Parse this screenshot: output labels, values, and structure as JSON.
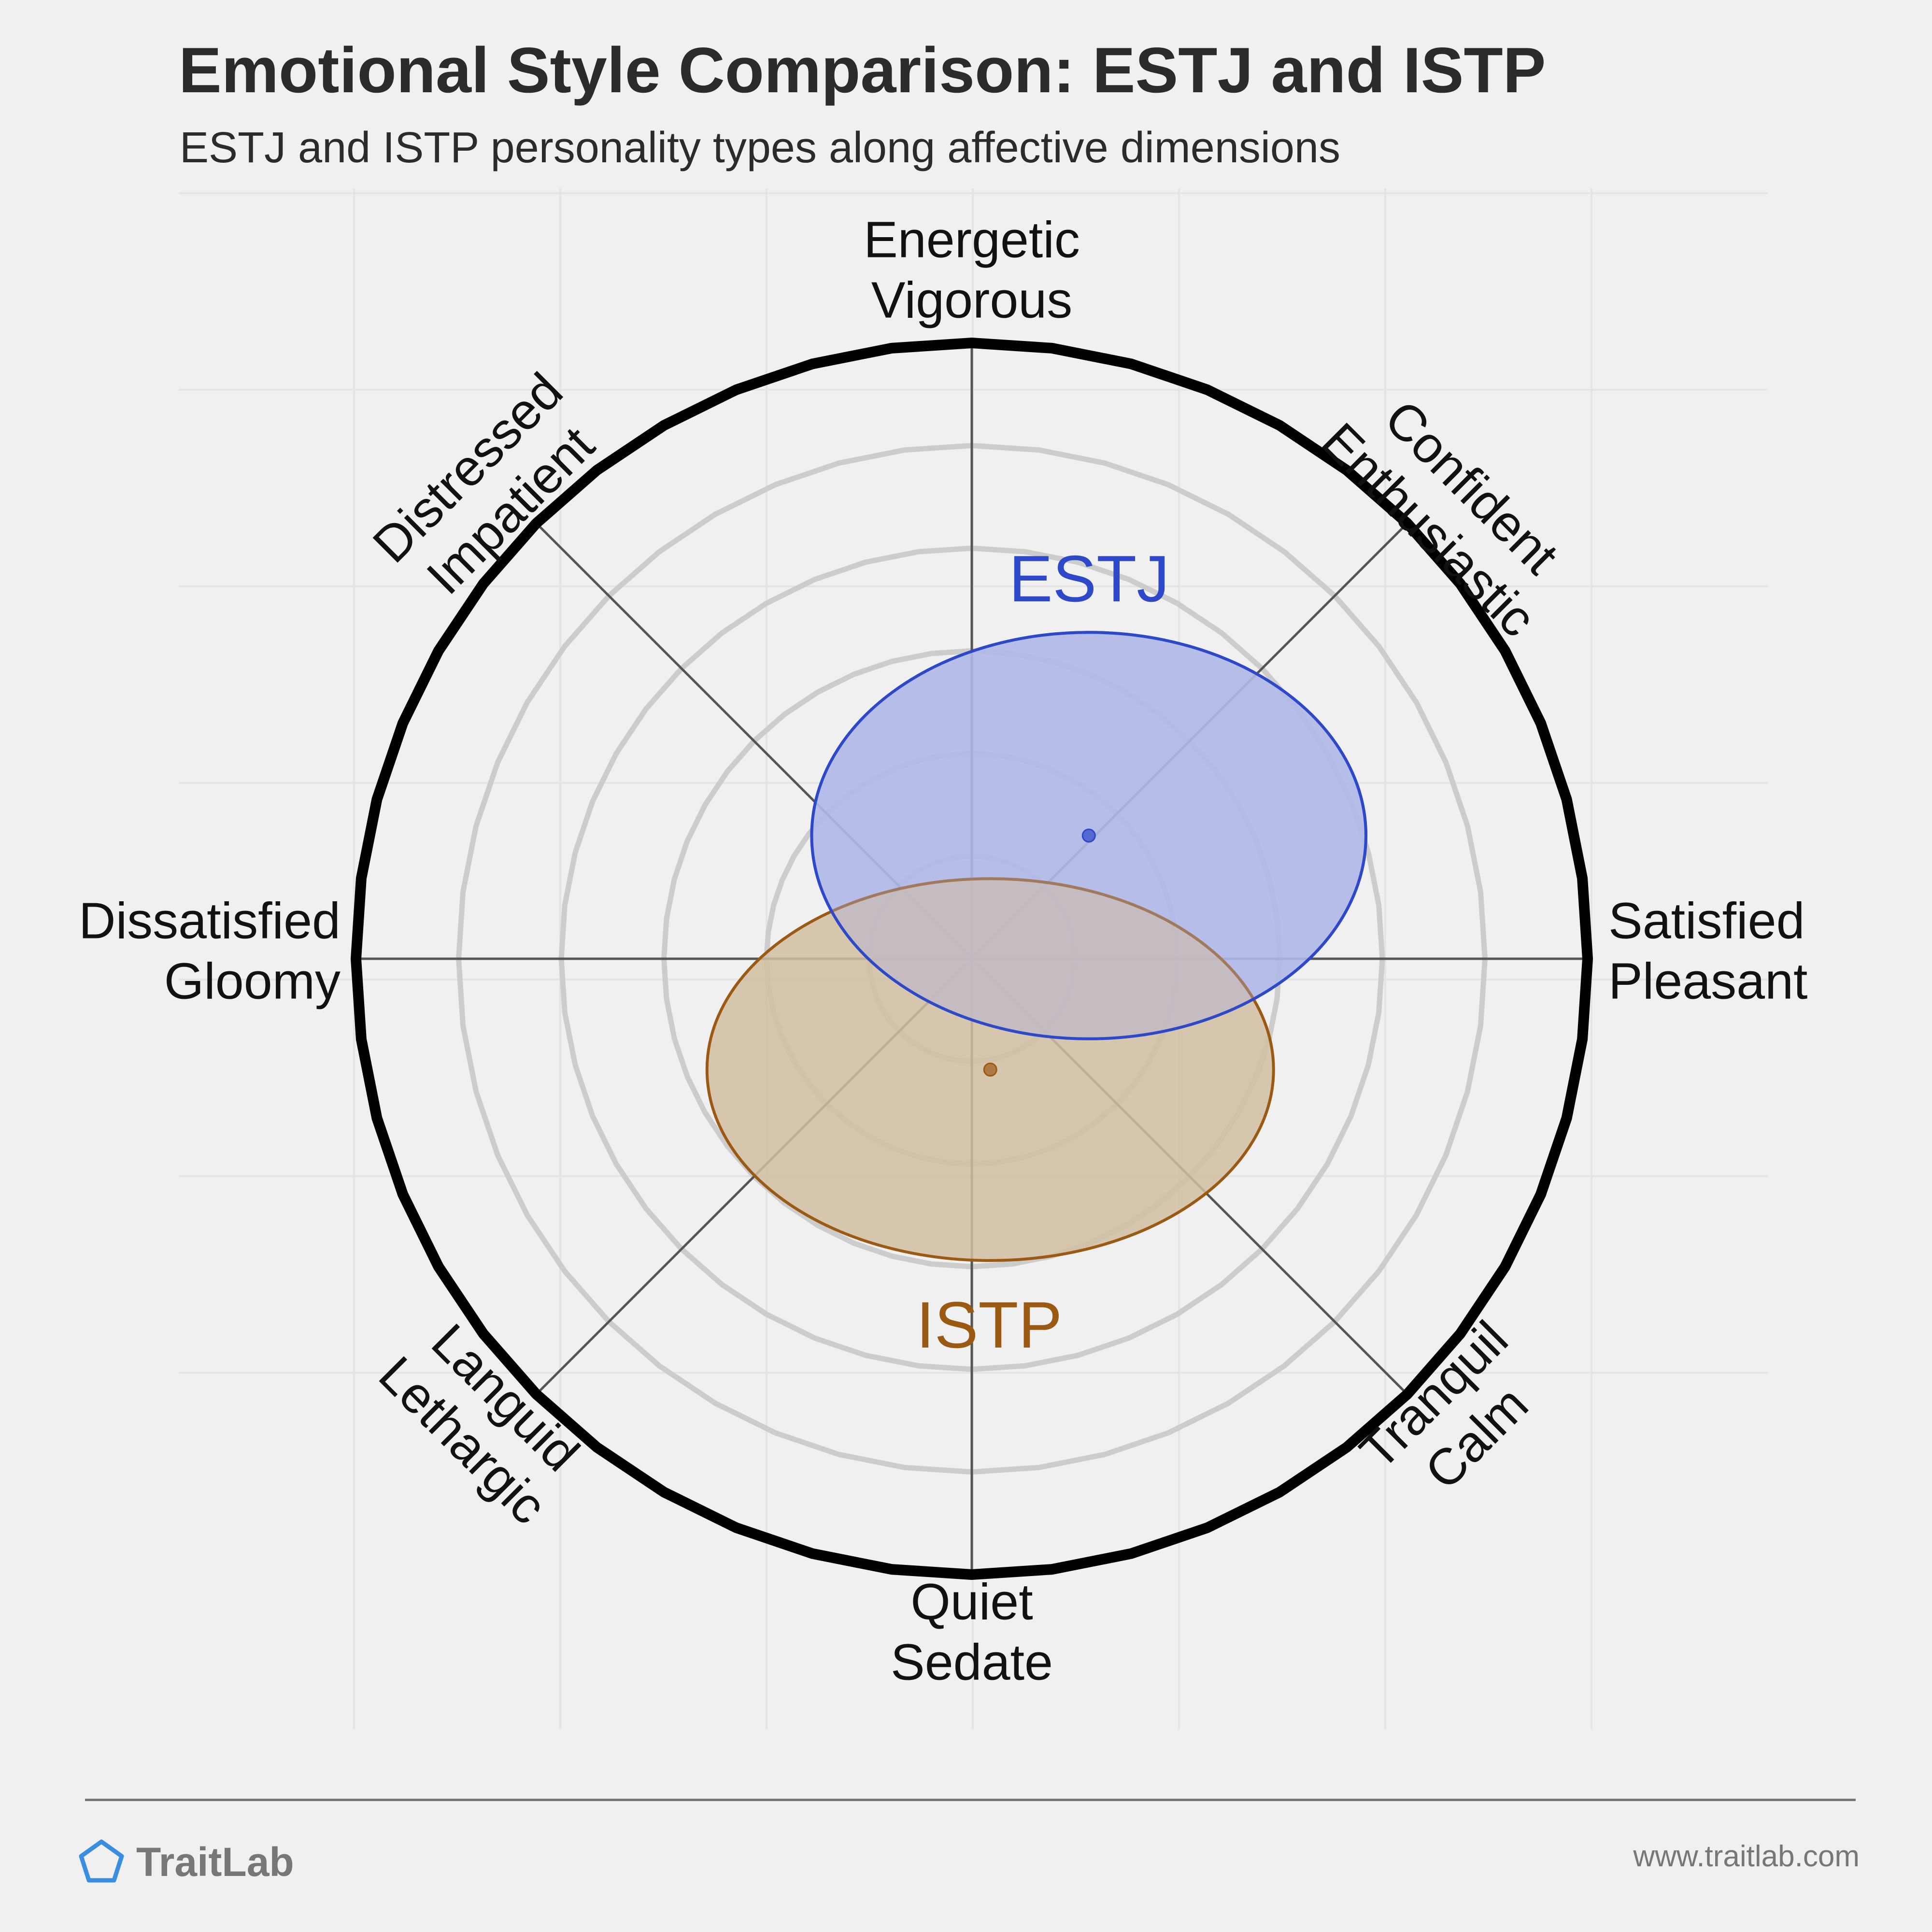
{
  "header": {
    "title": "Emotional Style Comparison: ESTJ and ISTP",
    "subtitle": "ESTJ and ISTP personality types along affective dimensions"
  },
  "footer": {
    "brand": "TraitLab",
    "url": "www.traitlab.com"
  },
  "colors": {
    "background": "#f0f0f0",
    "estj": "#2d48c8",
    "estj_fill": "#b0b8e8",
    "istp": "#9a5a14",
    "istp_fill": "#d2bea2",
    "brand_icon": "#3a8ee0"
  },
  "chart_data": {
    "type": "scatter",
    "subtype": "circumplex",
    "axis_labels": [
      {
        "angle": 90,
        "lines": [
          "Energetic",
          "Vigorous"
        ]
      },
      {
        "angle": 45,
        "lines": [
          "Confident",
          "Enthusiastic"
        ]
      },
      {
        "angle": 0,
        "lines": [
          "Satisfied",
          "Pleasant"
        ]
      },
      {
        "angle": -45,
        "lines": [
          "Tranquil",
          "Calm"
        ]
      },
      {
        "angle": -90,
        "lines": [
          "Quiet",
          "Sedate"
        ]
      },
      {
        "angle": -135,
        "lines": [
          "Languid",
          "Lethargic"
        ]
      },
      {
        "angle": 180,
        "lines": [
          "Dissatisfied",
          "Gloomy"
        ]
      },
      {
        "angle": 135,
        "lines": [
          "Distressed",
          "Impatient"
        ]
      }
    ],
    "rings": 6,
    "series": [
      {
        "name": "ESTJ",
        "x": 0.19,
        "y": 0.2,
        "rx": 0.45,
        "ry": 0.33
      },
      {
        "name": "ISTP",
        "x": 0.03,
        "y": -0.18,
        "rx": 0.46,
        "ry": 0.31
      }
    ],
    "range": [
      -1,
      1
    ]
  }
}
